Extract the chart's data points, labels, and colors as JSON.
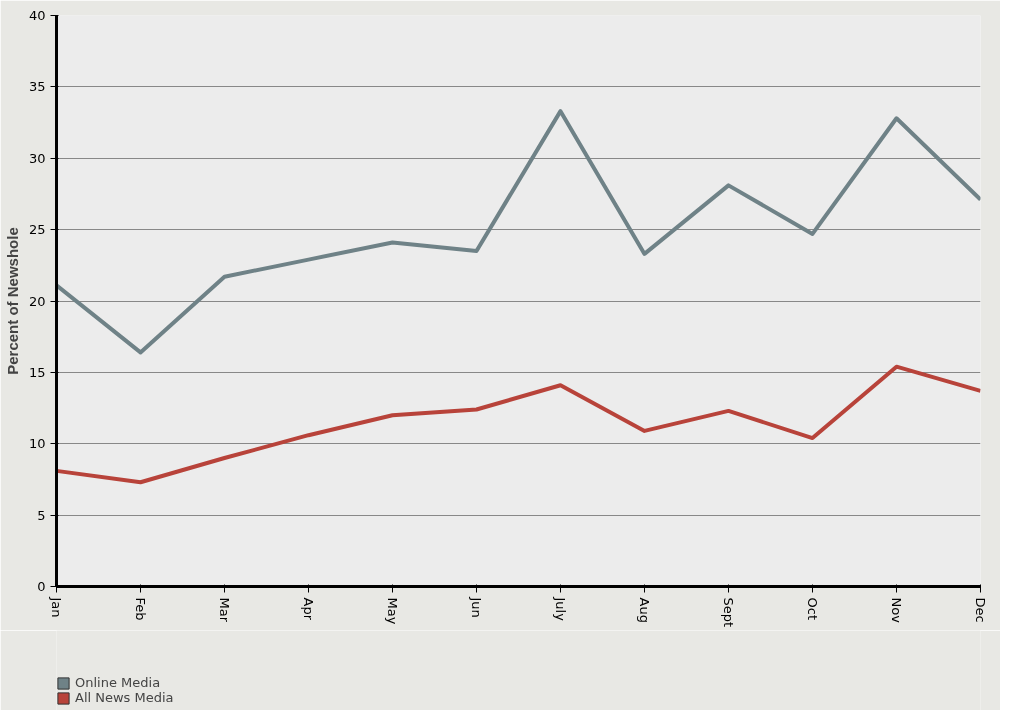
{
  "chart_data": {
    "type": "line",
    "ylabel": "Percent of Newshole",
    "categories": [
      "Jan",
      "Feb",
      "Mar",
      "Apr",
      "May",
      "Jun",
      "July",
      "Aug",
      "Sept",
      "Oct",
      "Nov",
      "Dec"
    ],
    "series": [
      {
        "name": "Online Media",
        "color": "#6f8287",
        "values": [
          21.1,
          16.4,
          21.7,
          22.9,
          24.1,
          23.5,
          33.3,
          23.3,
          28.1,
          24.7,
          32.8,
          27.1
        ]
      },
      {
        "name": "All News Media",
        "color": "#b8433a",
        "values": [
          8.1,
          7.3,
          9.0,
          10.6,
          12.0,
          12.4,
          14.1,
          10.9,
          12.3,
          10.4,
          15.4,
          13.7
        ]
      }
    ],
    "ylim": [
      0,
      40
    ],
    "yticks": [
      0,
      5,
      10,
      15,
      20,
      25,
      30,
      35,
      40
    ],
    "grid": "y",
    "legend": "bottom left",
    "marker": "none",
    "line_style": "solid"
  }
}
